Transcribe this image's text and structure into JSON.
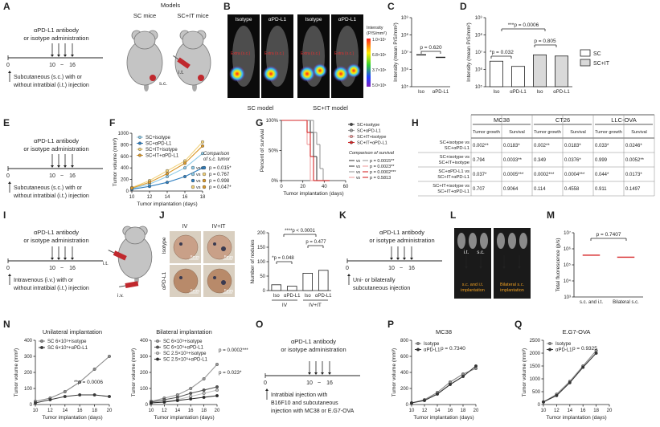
{
  "A": {
    "letter": "A",
    "antibody": "αPD-L1 antibody",
    "admin": "or isotype administration",
    "timeline": [
      "0",
      "10",
      "~",
      "16"
    ],
    "note": [
      "Subcutaneous (s.c.) with or",
      "without intratibial (i.t.) injection"
    ],
    "models": "Models",
    "sc": "SC mice",
    "scit": "SC+IT mice",
    "sc_site": "s.c.",
    "it_site": "i.t."
  },
  "B": {
    "letter": "B",
    "images": [
      "Isotype",
      "αPD-L1",
      "Isotype",
      "αPD-L1"
    ],
    "site": "Extra (s.c.)",
    "intensity": [
      "Intensity",
      "(P/S/mm²)"
    ],
    "colorbar": [
      "1.0×10⁷",
      "6.8×10⁶",
      "3.7×10⁶",
      "5.0×10⁵"
    ],
    "models": [
      "SC model",
      "SC+IT model"
    ]
  },
  "C": {
    "letter": "C",
    "p": "p = 0.620",
    "chart": {
      "type": "dot",
      "ylog": true,
      "ylabel": "Intensity (mean P/S/mm²)",
      "categories": [
        "Iso",
        "αPD-L1"
      ],
      "values": [
        7000000,
        5000000
      ],
      "color": "#222222",
      "ylim": [
        100000,
        1000000000
      ],
      "yticks": [
        {
          "value": 100000,
          "label": "10⁵"
        },
        {
          "value": 1000000,
          "label": "10⁶"
        },
        {
          "value": 10000000,
          "label": "10⁷"
        },
        {
          "value": 100000000,
          "label": "10⁸"
        },
        {
          "value": 1000000000,
          "label": "10⁹"
        }
      ]
    }
  },
  "D": {
    "letter": "D",
    "p": [
      "*p = 0.032",
      "p = 0.805",
      "***p = 0.0006"
    ],
    "chart": {
      "type": "bar",
      "ylog": true,
      "ylabel": "Intensity (mean P/S/mm²)",
      "categories": [
        "Iso",
        "αPD-L1",
        "Iso",
        "αPD-L1"
      ],
      "values": [
        3000000,
        1500000,
        7000000,
        6000000
      ],
      "bar_colors": [
        "#ffffff",
        "#ffffff",
        "#d9d9d9",
        "#d9d9d9"
      ],
      "legend": [
        {
          "name": "SC",
          "color": "#ffffff"
        },
        {
          "name": "SC+IT",
          "color": "#d9d9d9"
        }
      ],
      "ylim": [
        100000,
        1000000000
      ],
      "yticks": [
        {
          "value": 100000,
          "label": "10⁵"
        },
        {
          "value": 1000000,
          "label": "10⁶"
        },
        {
          "value": 10000000,
          "label": "10⁷"
        },
        {
          "value": 100000000,
          "label": "10⁸"
        },
        {
          "value": 1000000000,
          "label": "10⁹"
        }
      ]
    }
  },
  "E": {
    "letter": "E",
    "antibody": "αPD-L1 antibody",
    "admin": "or isotype administration",
    "timeline": [
      "0",
      "10",
      "~",
      "16"
    ],
    "note": [
      "Subcutaneous (s.c.) with or",
      "without intratibial (i.t.) injection"
    ]
  },
  "F": {
    "letter": "F",
    "comparison": {
      "title": [
        "Comparison",
        "of s.c. tumor"
      ],
      "vs": [
        "vs",
        "vs",
        "vs",
        "vs"
      ],
      "p": [
        "p = 0.015*",
        "p = 0.767",
        "p = 0.998",
        "p = 0.047*"
      ]
    },
    "chart": {
      "type": "line",
      "ylabel": "Tumor volume (mm³)",
      "xlabel": "Tumor implantation (days)",
      "x": [
        10,
        12,
        14,
        16,
        18
      ],
      "xlim": [
        10,
        18
      ],
      "xticks": [
        10,
        12,
        14,
        16,
        18
      ],
      "ylim": [
        0,
        1000
      ],
      "yticks": [
        0,
        200,
        400,
        600,
        800,
        1000
      ],
      "series": [
        {
          "name": "SC+isotype",
          "color": "#8fcbe8",
          "values": [
            40,
            120,
            250,
            400,
            650
          ]
        },
        {
          "name": "SC+αPD-L1",
          "color": "#2f7fc0",
          "values": [
            30,
            80,
            150,
            250,
            400
          ]
        },
        {
          "name": "SC+IT+isotype",
          "color": "#f2d27a",
          "values": [
            60,
            180,
            350,
            520,
            850
          ]
        },
        {
          "name": "SC+IT+αPD-L1",
          "color": "#dc9a2c",
          "values": [
            50,
            150,
            300,
            480,
            780
          ]
        }
      ]
    }
  },
  "G": {
    "letter": "G",
    "comparison": {
      "title": "Comparison of survival",
      "vs": [
        "vs",
        "vs",
        "vs",
        "vs"
      ],
      "p": [
        "p = 0.0015**",
        "p = 0.0023**",
        "p = 0.0002***",
        "p = 0.5813"
      ]
    },
    "chart": {
      "type": "step",
      "ylabel": "Percent of survival",
      "xlabel": "Tumor implantation (days)",
      "x": [
        0,
        24,
        27,
        30,
        33,
        36,
        39,
        42
      ],
      "xlim": [
        0,
        60
      ],
      "xticks": [
        0,
        20,
        40,
        60
      ],
      "ylim": [
        0,
        100
      ],
      "yticks": [
        {
          "value": 0,
          "label": "0%"
        },
        {
          "value": 50,
          "label": "50%"
        },
        {
          "value": 100,
          "label": "100%"
        }
      ],
      "series": [
        {
          "name": "SC+isotype",
          "color": "#444444",
          "values": [
            100,
            100,
            80,
            40,
            0,
            0,
            0,
            0
          ]
        },
        {
          "name": "SC+αPD-L1",
          "color": "#9a9a9a",
          "values": [
            100,
            100,
            100,
            80,
            60,
            20,
            0,
            0
          ]
        },
        {
          "name": "SC+IT+isotype",
          "color": "#f0a0a0",
          "values": [
            100,
            60,
            0,
            0,
            0,
            0,
            0,
            0
          ]
        },
        {
          "name": "SC+IT+αPD-L1",
          "color": "#d62728",
          "values": [
            100,
            80,
            40,
            0,
            0,
            0,
            0,
            0
          ]
        }
      ]
    }
  },
  "H": {
    "letter": "H",
    "table": {
      "groups": [
        "MC38",
        "CT26",
        "LLC-OVA"
      ],
      "sub": [
        "Tumor growth",
        "Survival",
        "Tumor growth",
        "Survival",
        "Tumor growth",
        "Survival"
      ],
      "rows": [
        {
          "label": [
            "SC+isotype vs",
            "SC+αPD-L1"
          ],
          "cells": [
            "0.002**",
            "0.0183*",
            "0.002**",
            "0.0183*",
            "0.033*",
            "0.0246*"
          ]
        },
        {
          "label": [
            "SC+isotype vs",
            "SC+IT+isotype"
          ],
          "cells": [
            "0.794",
            "0.0033**",
            "0.349",
            "0.0376*",
            "0.999",
            "0.0052**"
          ]
        },
        {
          "label": [
            "SC+αPD-L1 vs",
            "SC+IT+αPD-L1"
          ],
          "cells": [
            "0.037*",
            "0.0005***",
            "0.0002***",
            "0.0004***",
            "0.044*",
            "0.0173*"
          ]
        },
        {
          "label": [
            "SC+IT+isotype vs",
            "SC+IT+αPD-L1"
          ],
          "cells": [
            "0.707",
            "0.9064",
            "0.114",
            "0.4558",
            "0.911",
            "0.1497"
          ]
        }
      ]
    }
  },
  "I": {
    "letter": "I",
    "antibody": "αPD-L1 antibody",
    "admin": "or isotype administration",
    "timeline": [
      "0",
      "10",
      "~",
      "16"
    ],
    "note": [
      "Intravenous (i.v.) with or",
      "without intratibial (i.t.) injection"
    ],
    "it_site": "i.t.",
    "iv_site": "i.v."
  },
  "J": {
    "letter": "J",
    "columns": [
      "IV",
      "IV+IT"
    ],
    "rows": [
      "Isotype",
      "αPD-L1"
    ],
    "scale": [
      "5mm",
      "5mm",
      "5mm",
      "5mm"
    ],
    "groups": [
      "IV",
      "IV+IT"
    ],
    "p": [
      "*p = 0.048",
      "p = 0.477",
      "****p < 0.0001"
    ],
    "chart": {
      "type": "bar",
      "ylabel": "Number of nodules",
      "categories": [
        "Iso",
        "αPD-L1",
        "Iso",
        "αPD-L1"
      ],
      "values": [
        20,
        15,
        60,
        70
      ],
      "bar_colors": [
        "#ffffff",
        "#ffffff",
        "#ffffff",
        "#ffffff"
      ],
      "ylim": [
        0,
        200
      ],
      "yticks": [
        0,
        50,
        100,
        150,
        200
      ]
    }
  },
  "K": {
    "letter": "K",
    "antibody": "αPD-L1 antibody",
    "admin": "or isotype administration",
    "timeline": [
      "0",
      "10",
      "~",
      "16"
    ],
    "note": [
      "Uni- or bilaterally",
      "subcutaneous injection"
    ]
  },
  "L": {
    "letter": "L",
    "sites": [
      "i.t.",
      "s.c."
    ],
    "captions": [
      [
        "s.c. and i.t.",
        "implantation"
      ],
      [
        "Bilateral s.c.",
        "implantation"
      ]
    ]
  },
  "M": {
    "letter": "M",
    "p": "p = 0.7407",
    "chart": {
      "type": "dot",
      "ylog": true,
      "ylabel": "Total fluorescence (p/s)",
      "categories": [
        "s.c. and i.t.",
        "Bilateral s.c."
      ],
      "values": [
        400000,
        300000
      ],
      "color": "#d62728",
      "ylim": [
        1000,
        10000000
      ],
      "yticks": [
        {
          "value": 1000,
          "label": "10³"
        },
        {
          "value": 10000,
          "label": "10⁴"
        },
        {
          "value": 100000,
          "label": "10⁵"
        },
        {
          "value": 1000000,
          "label": "10⁶"
        },
        {
          "value": 10000000,
          "label": "10⁷"
        }
      ]
    }
  },
  "N": {
    "letter": "N",
    "charts": [
      {
        "type": "line",
        "title": "Unilateral implantation",
        "ylabel": "Tumor volume (mm³)",
        "xlabel": "Tumor implantation (days)",
        "x": [
          10,
          12,
          14,
          16,
          18,
          20
        ],
        "xlim": [
          10,
          20
        ],
        "xticks": [
          10,
          12,
          14,
          16,
          18,
          20
        ],
        "ylim": [
          0,
          400
        ],
        "yticks": [
          0,
          100,
          200,
          300,
          400
        ],
        "p": [
          "**p = 0.0006"
        ],
        "series": [
          {
            "name": "SC 6×10⁵+isotype",
            "color": "#8a8a8a",
            "values": [
              20,
              40,
              80,
              140,
              220,
              300
            ]
          },
          {
            "name": "SC 6×10⁵+αPD-L1",
            "color": "#3a3a3a",
            "values": [
              10,
              30,
              50,
              60,
              60,
              50
            ]
          }
        ]
      },
      {
        "type": "line",
        "title": "Bilateral implantation",
        "ylabel": "Tumor volume (mm³)",
        "xlabel": "Tumor implantation (days)",
        "x": [
          10,
          12,
          14,
          16,
          18,
          20
        ],
        "xlim": [
          10,
          20
        ],
        "xticks": [
          10,
          12,
          14,
          16,
          18,
          20
        ],
        "ylim": [
          0,
          400
        ],
        "yticks": [
          0,
          100,
          200,
          300,
          400
        ],
        "p": [
          "p = 0.0002***",
          "p = 0.023*"
        ],
        "series": [
          {
            "name": "SC 6×10⁵+isotype",
            "color": "#9a9a9a",
            "values": [
              20,
              40,
              60,
              100,
              160,
              250
            ]
          },
          {
            "name": "SC 6×10⁵+αPD-L1",
            "color": "#555555",
            "values": [
              15,
              30,
              45,
              70,
              90,
              110
            ]
          },
          {
            "name": "SC 2.5×10⁵+isotype",
            "color": "#c0c0c0",
            "values": [
              10,
              20,
              30,
              50,
              70,
              90
            ]
          },
          {
            "name": "SC 2.5×10⁵+αPD-L1",
            "color": "#2a2a2a",
            "values": [
              10,
              15,
              25,
              35,
              45,
              55
            ]
          }
        ]
      }
    ]
  },
  "O": {
    "letter": "O",
    "antibody": "αPD-L1 antibody",
    "admin": "or isotype administration",
    "timeline": [
      "0",
      "10",
      "~",
      "16"
    ],
    "note": [
      "Intratibial injection with",
      "B16F10 and subcutaneous",
      "injection with MC38 or E.G7-OVA"
    ]
  },
  "P": {
    "letter": "P",
    "p": "p = 0.7340",
    "chart": {
      "type": "line",
      "title": "MC38",
      "ylabel": "Tumor volume (mm³)",
      "xlabel": "Tumor implantation (days)",
      "x": [
        10,
        12,
        14,
        16,
        18,
        20
      ],
      "xlim": [
        10,
        20
      ],
      "xticks": [
        10,
        12,
        14,
        16,
        18,
        20
      ],
      "ylim": [
        0,
        800
      ],
      "yticks": [
        0,
        200,
        400,
        600,
        800
      ],
      "series": [
        {
          "name": "Isotype",
          "color": "#8a8a8a",
          "values": [
            20,
            60,
            150,
            280,
            380,
            450
          ]
        },
        {
          "name": "αPD-L1",
          "color": "#333333",
          "values": [
            20,
            50,
            130,
            250,
            350,
            480
          ]
        }
      ]
    }
  },
  "Q": {
    "letter": "Q",
    "p": "p = 0.9325",
    "chart": {
      "type": "line",
      "title": "E.G7-OVA",
      "ylabel": "Tumor volume (mm³)",
      "xlabel": "Tumor implantation (days)",
      "x": [
        10,
        12,
        14,
        16,
        18
      ],
      "xlim": [
        10,
        20
      ],
      "xticks": [
        10,
        12,
        14,
        16,
        18,
        20
      ],
      "ylim": [
        0,
        2500
      ],
      "yticks": [
        0,
        500,
        1000,
        1500,
        2000,
        2500
      ],
      "series": [
        {
          "name": "Isotype",
          "color": "#8a8a8a",
          "values": [
            100,
            400,
            900,
            1500,
            2100
          ]
        },
        {
          "name": "αPD-L1",
          "color": "#333333",
          "values": [
            100,
            350,
            850,
            1450,
            2000
          ]
        }
      ]
    }
  }
}
